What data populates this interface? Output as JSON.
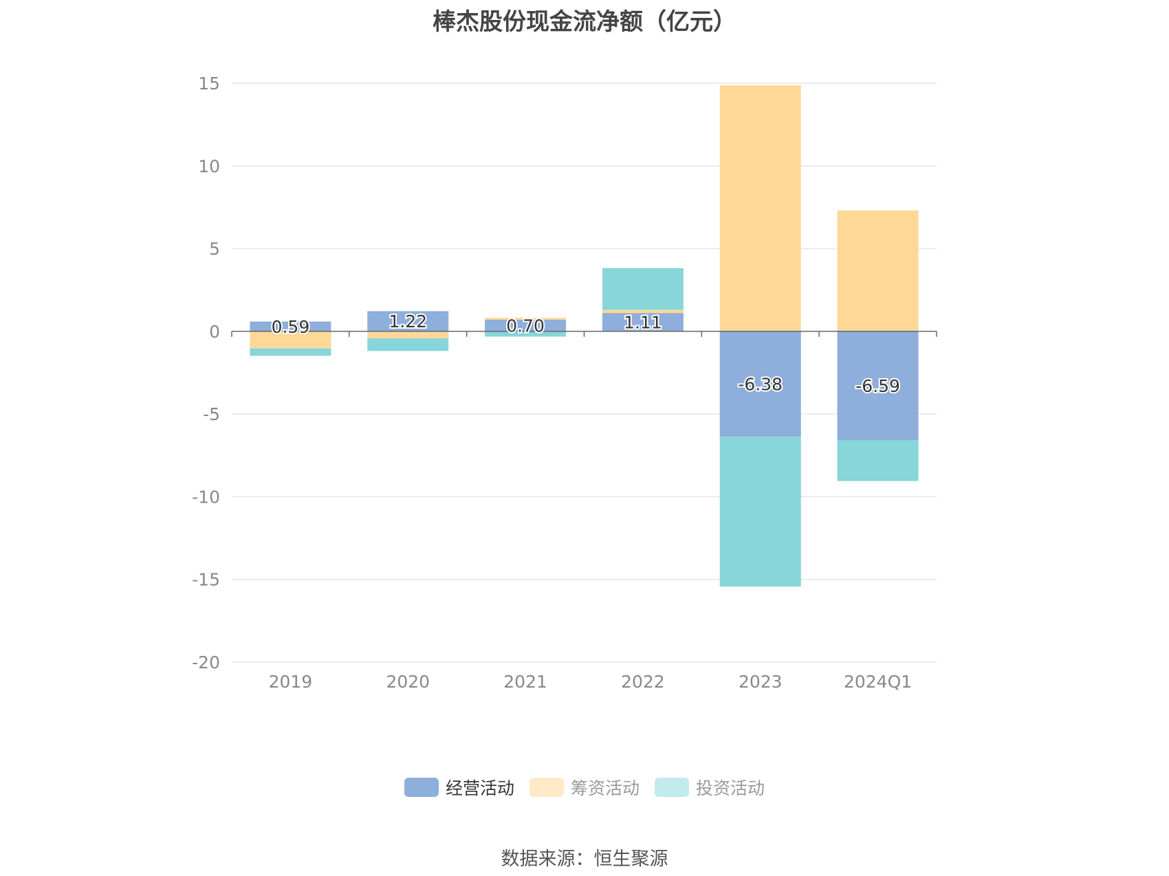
{
  "chart_data": {
    "type": "bar",
    "stacked": true,
    "title": "棒杰股份现金流净额（亿元）",
    "categories": [
      "2019",
      "2020",
      "2021",
      "2022",
      "2023",
      "2024Q1"
    ],
    "ylim": [
      -20,
      15
    ],
    "yticks": [
      15,
      10,
      5,
      0,
      -5,
      -10,
      -15,
      -20
    ],
    "grid": true,
    "legend_position": "bottom",
    "series": [
      {
        "name": "经营活动",
        "color": "#8eaedb",
        "values": [
          0.59,
          1.22,
          0.7,
          1.11,
          -6.38,
          -6.59
        ],
        "labels": [
          "0.59",
          "1.22",
          "0.70",
          "1.11",
          "-6.38",
          "-6.59"
        ]
      },
      {
        "name": "筹资活动",
        "color": "#ffd898",
        "values": [
          -1.03,
          -0.42,
          0.12,
          0.19,
          14.87,
          7.31
        ]
      },
      {
        "name": "投资活动",
        "color": "#87d6d9",
        "values": [
          -0.45,
          -0.77,
          -0.32,
          2.52,
          -9.05,
          -2.46
        ]
      }
    ]
  },
  "legend": {
    "items": [
      {
        "label": "经营活动",
        "color": "#8eaedb",
        "active": true
      },
      {
        "label": "筹资活动",
        "color": "#ffe9c6",
        "active": false
      },
      {
        "label": "投资活动",
        "color": "#c3eaec",
        "active": false
      }
    ]
  },
  "footer": {
    "source": "数据来源：恒生聚源"
  }
}
